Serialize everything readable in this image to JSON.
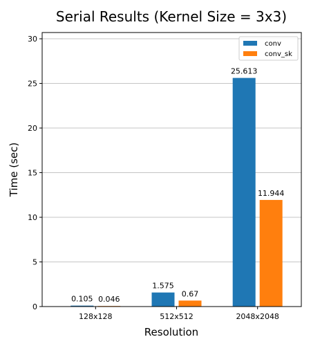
{
  "chart_data": {
    "type": "bar",
    "title": "Serial Results (Kernel Size = 3x3)",
    "xlabel": "Resolution",
    "ylabel": "Time (sec)",
    "categories": [
      "128x128",
      "512x512",
      "2048x2048"
    ],
    "series": [
      {
        "name": "conv",
        "values": [
          0.105,
          1.575,
          25.613
        ],
        "labels": [
          "0.105",
          "1.575",
          "25.613"
        ],
        "color": "#1f77b4"
      },
      {
        "name": "conv_sk",
        "values": [
          0.046,
          0.67,
          11.944
        ],
        "labels": [
          "0.046",
          "0.67",
          "11.944"
        ],
        "color": "#ff7f0e"
      }
    ],
    "ylim": [
      0,
      30.7
    ],
    "yticks": [
      0,
      5,
      10,
      15,
      20,
      25,
      30
    ],
    "grid": "horizontal",
    "legend": "top-right"
  }
}
